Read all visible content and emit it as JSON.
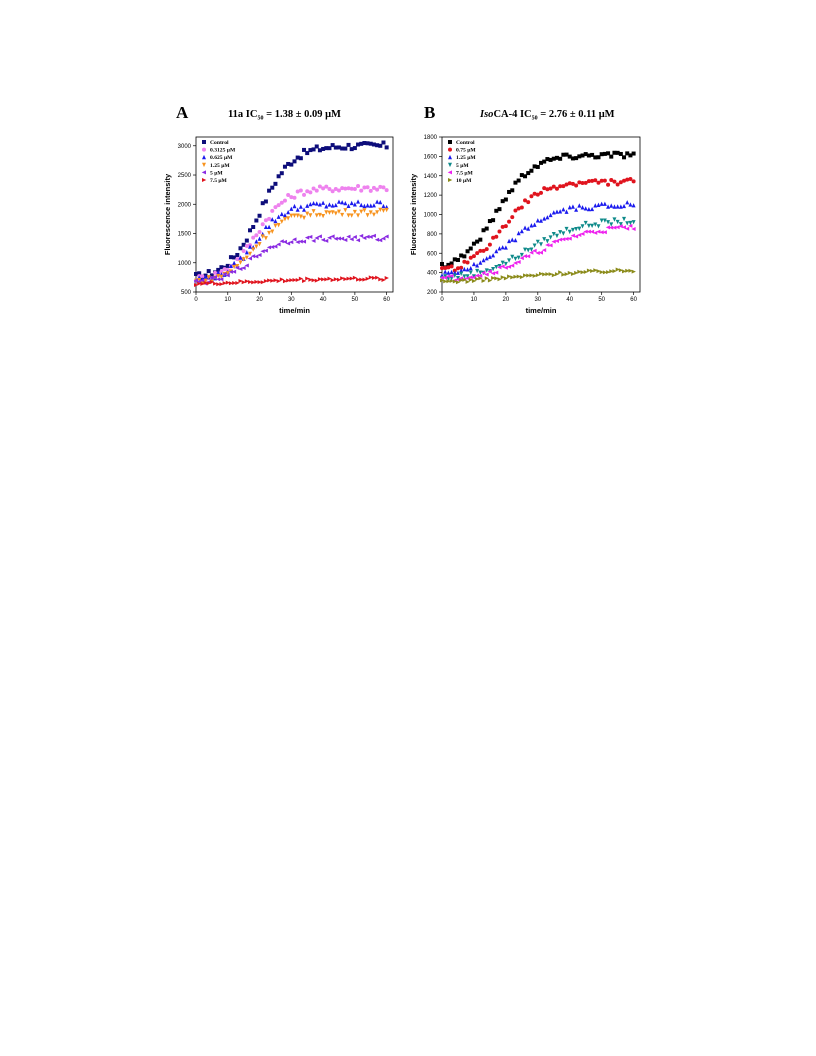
{
  "figure": {
    "panels": [
      {
        "letter": "A",
        "title_main": "11a IC",
        "title_sub": "50",
        "title_rest": " = 1.38 ± 0.09 μM"
      },
      {
        "letter": "B",
        "title_main": "IsoCA-4 IC",
        "title_sub": "50",
        "title_rest": " = 2.76 ± 0.11 μM"
      }
    ]
  },
  "chart_data": [
    {
      "type": "scatter",
      "panel": "A",
      "title": "11a IC50 = 1.38 ± 0.09 μM",
      "xlabel": "time/min",
      "ylabel": "Fluorescence intensity",
      "xlim": [
        0,
        62
      ],
      "ylim": [
        500,
        3150
      ],
      "xticks": [
        0,
        10,
        20,
        30,
        40,
        50,
        60
      ],
      "yticks": [
        500,
        1000,
        1500,
        2000,
        2500,
        3000
      ],
      "legend_position": "top-left",
      "series": [
        {
          "name": "Control",
          "marker": "square",
          "color": "#0d0d7a",
          "baseline": 720,
          "plateau": 3000,
          "midpoint": 20,
          "rate": 0.2,
          "noise": 60
        },
        {
          "name": "0.3125 μM",
          "marker": "circle",
          "color": "#ee82ee",
          "baseline": 700,
          "plateau": 2280,
          "midpoint": 19,
          "rate": 0.21,
          "noise": 55
        },
        {
          "name": "0.625 μM",
          "marker": "triangle-up",
          "color": "#1a1aee",
          "baseline": 690,
          "plateau": 2000,
          "midpoint": 18.5,
          "rate": 0.22,
          "noise": 55
        },
        {
          "name": "1.25 μM",
          "marker": "triangle-down",
          "color": "#f7931e",
          "baseline": 660,
          "plateau": 1860,
          "midpoint": 18.5,
          "rate": 0.21,
          "noise": 50
        },
        {
          "name": "5 μM",
          "marker": "triangle-left",
          "color": "#8a2be2",
          "baseline": 650,
          "plateau": 1420,
          "midpoint": 17,
          "rate": 0.22,
          "noise": 45
        },
        {
          "name": "7.5 μM",
          "marker": "triangle-right",
          "color": "#e0141e",
          "baseline": 630,
          "plateau": 730,
          "midpoint": 20,
          "rate": 0.1,
          "noise": 25
        }
      ]
    },
    {
      "type": "scatter",
      "panel": "B",
      "title": "IsoCA-4 IC50 = 2.76 ± 0.11 μM",
      "xlabel": "time/min",
      "ylabel": "Fluorescence intensity",
      "xlim": [
        0,
        62
      ],
      "ylim": [
        200,
        1800
      ],
      "xticks": [
        0,
        10,
        20,
        30,
        40,
        50,
        60
      ],
      "yticks": [
        200,
        400,
        600,
        800,
        1000,
        1200,
        1400,
        1600,
        1800
      ],
      "legend_position": "top-left",
      "series": [
        {
          "name": "Control",
          "marker": "square",
          "color": "#000000",
          "baseline": 420,
          "plateau": 1620,
          "midpoint": 17,
          "rate": 0.18,
          "noise": 30
        },
        {
          "name": "0.75 μM",
          "marker": "circle",
          "color": "#e0141e",
          "baseline": 380,
          "plateau": 1340,
          "midpoint": 19,
          "rate": 0.17,
          "noise": 30
        },
        {
          "name": "1.25 μM",
          "marker": "triangle-up",
          "color": "#1a1aee",
          "baseline": 360,
          "plateau": 1100,
          "midpoint": 22,
          "rate": 0.15,
          "noise": 28
        },
        {
          "name": "5 μM",
          "marker": "triangle-down",
          "color": "#0f8a8a",
          "baseline": 330,
          "plateau": 940,
          "midpoint": 27,
          "rate": 0.13,
          "noise": 28
        },
        {
          "name": "7.5 μM",
          "marker": "triangle-left",
          "color": "#ee22ee",
          "baseline": 320,
          "plateau": 880,
          "midpoint": 29,
          "rate": 0.12,
          "noise": 28
        },
        {
          "name": "10 μM",
          "marker": "triangle-right",
          "color": "#8b8b1a",
          "baseline": 290,
          "plateau": 430,
          "midpoint": 25,
          "rate": 0.08,
          "noise": 15
        }
      ]
    }
  ]
}
